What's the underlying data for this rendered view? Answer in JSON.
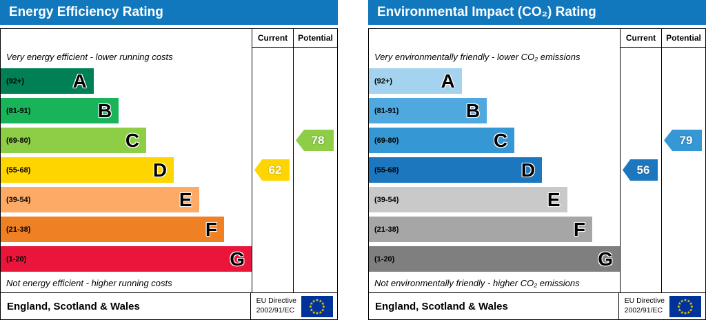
{
  "charts": [
    {
      "title": "Energy Efficiency Rating",
      "columns": {
        "current": "Current",
        "potential": "Potential"
      },
      "top_note": "Very energy efficient - lower running costs",
      "bottom_note": "Not energy efficient - higher running costs",
      "bands": [
        {
          "range": "(92+)",
          "letter": "A",
          "color": "#008054",
          "width_pct": 37
        },
        {
          "range": "(81-91)",
          "letter": "B",
          "color": "#19b459",
          "width_pct": 47
        },
        {
          "range": "(69-80)",
          "letter": "C",
          "color": "#8dce46",
          "width_pct": 58
        },
        {
          "range": "(55-68)",
          "letter": "D",
          "color": "#ffd500",
          "width_pct": 69
        },
        {
          "range": "(39-54)",
          "letter": "E",
          "color": "#fcaa65",
          "width_pct": 79
        },
        {
          "range": "(21-38)",
          "letter": "F",
          "color": "#ef8023",
          "width_pct": 89
        },
        {
          "range": "(1-20)",
          "letter": "G",
          "color": "#e9153b",
          "width_pct": 100
        }
      ],
      "current": {
        "value": 62,
        "band_index": 3,
        "color": "#ffd500"
      },
      "potential": {
        "value": 78,
        "band_index": 2,
        "color": "#8dce46"
      },
      "footer": {
        "region": "England, Scotland & Wales",
        "directive_line1": "EU Directive",
        "directive_line2": "2002/91/EC"
      }
    },
    {
      "title": "Environmental Impact (CO₂) Rating",
      "columns": {
        "current": "Current",
        "potential": "Potential"
      },
      "top_note": "Very environmentally friendly - lower CO₂ emissions",
      "bottom_note": "Not environmentally friendly - higher CO₂ emissions",
      "bands": [
        {
          "range": "(92+)",
          "letter": "A",
          "color": "#a3d3ee",
          "width_pct": 37
        },
        {
          "range": "(81-91)",
          "letter": "B",
          "color": "#4fa9df",
          "width_pct": 47
        },
        {
          "range": "(69-80)",
          "letter": "C",
          "color": "#3597d4",
          "width_pct": 58
        },
        {
          "range": "(55-68)",
          "letter": "D",
          "color": "#1c77bf",
          "width_pct": 69
        },
        {
          "range": "(39-54)",
          "letter": "E",
          "color": "#c9c9c9",
          "width_pct": 79
        },
        {
          "range": "(21-38)",
          "letter": "F",
          "color": "#a6a6a6",
          "width_pct": 89
        },
        {
          "range": "(1-20)",
          "letter": "G",
          "color": "#7f7f7f",
          "width_pct": 100
        }
      ],
      "current": {
        "value": 56,
        "band_index": 3,
        "color": "#1c77bf"
      },
      "potential": {
        "value": 79,
        "band_index": 2,
        "color": "#3597d4"
      },
      "footer": {
        "region": "England, Scotland & Wales",
        "directive_line1": "EU Directive",
        "directive_line2": "2002/91/EC"
      }
    }
  ],
  "chart_data": [
    {
      "type": "bar",
      "title": "Energy Efficiency Rating",
      "categories": [
        "A (92+)",
        "B (81-91)",
        "C (69-80)",
        "D (55-68)",
        "E (39-54)",
        "F (21-38)",
        "G (1-20)"
      ],
      "series": [
        {
          "name": "Current",
          "value": 62,
          "band": "D"
        },
        {
          "name": "Potential",
          "value": 78,
          "band": "C"
        }
      ],
      "annotations": [
        "Very energy efficient - lower running costs",
        "Not energy efficient - higher running costs"
      ],
      "footer": "England, Scotland & Wales — EU Directive 2002/91/EC"
    },
    {
      "type": "bar",
      "title": "Environmental Impact (CO₂) Rating",
      "categories": [
        "A (92+)",
        "B (81-91)",
        "C (69-80)",
        "D (55-68)",
        "E (39-54)",
        "F (21-38)",
        "G (1-20)"
      ],
      "series": [
        {
          "name": "Current",
          "value": 56,
          "band": "D"
        },
        {
          "name": "Potential",
          "value": 79,
          "band": "C"
        }
      ],
      "annotations": [
        "Very environmentally friendly - lower CO₂ emissions",
        "Not environmentally friendly - higher CO₂ emissions"
      ],
      "footer": "England, Scotland & Wales — EU Directive 2002/91/EC"
    }
  ]
}
